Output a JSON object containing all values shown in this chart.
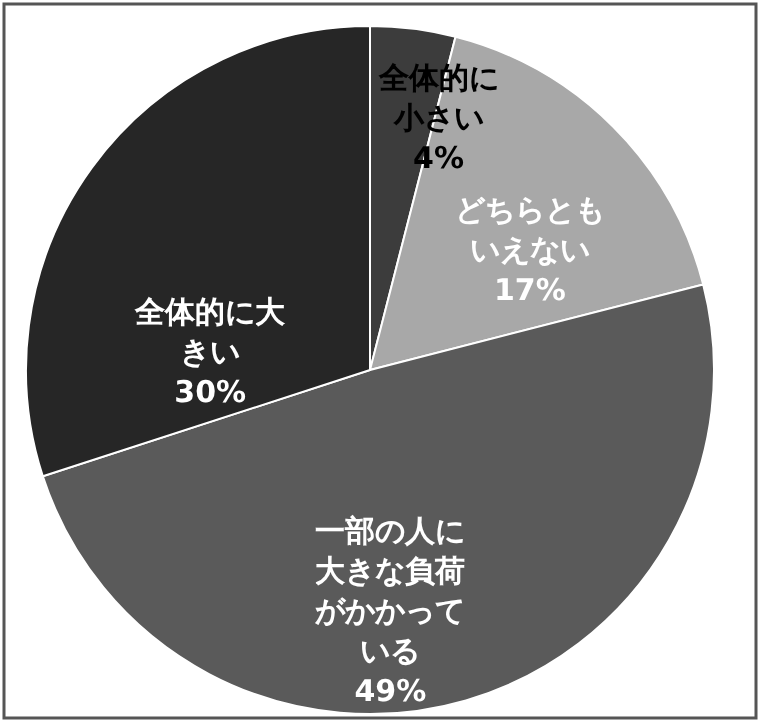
{
  "chart_data": {
    "type": "pie",
    "categories": [
      "全体的に小さい",
      "どちらともいえない",
      "一部の人に大きな負荷がかかっている",
      "全体的に大きい"
    ],
    "values": [
      4,
      17,
      49,
      30
    ],
    "value_labels": [
      "4%",
      "17%",
      "49%",
      "30%"
    ],
    "colors": [
      "#3c3c3c",
      "#a8a8a8",
      "#5a5a5a",
      "#262626"
    ]
  }
}
